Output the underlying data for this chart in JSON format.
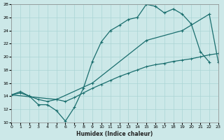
{
  "xlabel": "Humidex (Indice chaleur)",
  "bg_color": "#cce8e8",
  "line_color": "#1a6e6e",
  "grid_color": "#aad4d4",
  "xlim": [
    0,
    23
  ],
  "ylim": [
    10,
    28
  ],
  "yticks": [
    10,
    12,
    14,
    16,
    18,
    20,
    22,
    24,
    26,
    28
  ],
  "line1_x": [
    0,
    1,
    2,
    3,
    4,
    5,
    6,
    7,
    8,
    9,
    10,
    11,
    12,
    13,
    14,
    15,
    16,
    17,
    18,
    19,
    20,
    21,
    22
  ],
  "line1_y": [
    14.2,
    14.7,
    14.0,
    12.7,
    12.7,
    11.8,
    10.2,
    12.3,
    15.2,
    19.3,
    22.3,
    24.0,
    24.8,
    25.7,
    26.0,
    28.0,
    27.7,
    26.7,
    27.3,
    26.5,
    25.0,
    20.8,
    19.2
  ],
  "line2_x": [
    0,
    1,
    2,
    3,
    4,
    5,
    6,
    7,
    8,
    9,
    10,
    11,
    12,
    13,
    14,
    15,
    16,
    17,
    18,
    19,
    20,
    21,
    22,
    23
  ],
  "line2_y": [
    14.2,
    14.5,
    14.0,
    13.5,
    13.2,
    13.5,
    13.2,
    13.8,
    14.5,
    15.2,
    15.8,
    16.4,
    17.0,
    17.5,
    18.0,
    18.5,
    18.8,
    19.0,
    19.3,
    19.5,
    19.7,
    20.0,
    20.3,
    20.5
  ],
  "line3_x": [
    0,
    5,
    9,
    15,
    19,
    22,
    23
  ],
  "line3_y": [
    14.2,
    13.5,
    16.0,
    22.5,
    24.0,
    26.5,
    19.2
  ]
}
